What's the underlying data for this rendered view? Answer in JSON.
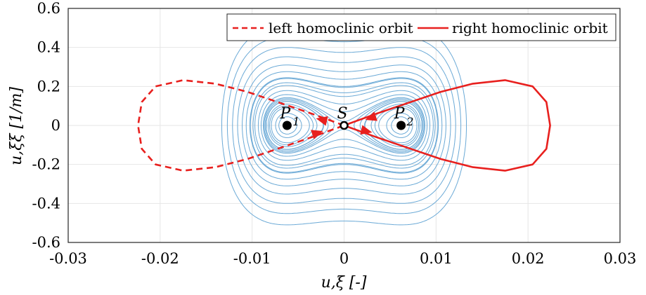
{
  "chart_data": {
    "type": "line",
    "title": "",
    "xlabel": "u,ξ [-]",
    "ylabel": "u,ξξ [1/m]",
    "xlim": [
      -0.03,
      0.03
    ],
    "ylim": [
      -0.6,
      0.6
    ],
    "x_ticks": [
      "-0.03",
      "-0.02",
      "-0.01",
      "0",
      "0.01",
      "0.02",
      "0.03"
    ],
    "y_ticks": [
      "-0.6",
      "-0.4",
      "-0.2",
      "0",
      "0.2",
      "0.4",
      "0.6"
    ],
    "grid": true,
    "legend_position": "top-right",
    "colors": {
      "contours": "#6aa9d6",
      "orbits": "#e8201e",
      "points": "#000000"
    },
    "series": [
      {
        "name": "left homoclinic orbit",
        "style": "dashed",
        "x": [
          0,
          -0.0035,
          -0.007,
          -0.0105,
          -0.014,
          -0.0175,
          -0.0205,
          -0.022,
          -0.0224,
          -0.022,
          -0.0205,
          -0.0175,
          -0.014,
          -0.0105,
          -0.007,
          -0.0035,
          0
        ],
        "y": [
          0,
          0.06,
          0.116,
          0.172,
          0.214,
          0.232,
          0.2,
          0.12,
          0,
          -0.12,
          -0.2,
          -0.232,
          -0.214,
          -0.172,
          -0.116,
          -0.06,
          0
        ]
      },
      {
        "name": "right homoclinic orbit",
        "style": "solid",
        "x": [
          0,
          0.0035,
          0.007,
          0.0105,
          0.014,
          0.0175,
          0.0205,
          0.022,
          0.0224,
          0.022,
          0.0205,
          0.0175,
          0.014,
          0.0105,
          0.007,
          0.0035,
          0
        ],
        "y": [
          0,
          0.06,
          0.116,
          0.172,
          0.214,
          0.232,
          0.2,
          0.12,
          0,
          -0.12,
          -0.2,
          -0.232,
          -0.214,
          -0.172,
          -0.116,
          -0.06,
          0
        ]
      }
    ],
    "points": [
      {
        "label": "P",
        "sub": "1",
        "x": -0.0062,
        "y": 0,
        "filled": true
      },
      {
        "label": "S",
        "sub": "",
        "x": 0,
        "y": 0,
        "filled": false
      },
      {
        "label": "P",
        "sub": "2",
        "x": 0.0062,
        "y": 0,
        "filled": true
      }
    ],
    "contour_levels_centers": [
      0.3,
      0.5,
      0.7,
      0.85,
      0.95,
      1.12,
      1.35,
      1.7,
      2.2,
      3.0
    ],
    "contour_levels_outer": [
      0.7,
      1.0,
      1.4,
      1.9,
      2.6,
      3.5,
      4.6,
      6.0
    ],
    "contour_levels_saddle": [
      0.03,
      0.12,
      0.25,
      0.45,
      0.75,
      1.2,
      2.0,
      3.3,
      5.5,
      9.0
    ]
  }
}
